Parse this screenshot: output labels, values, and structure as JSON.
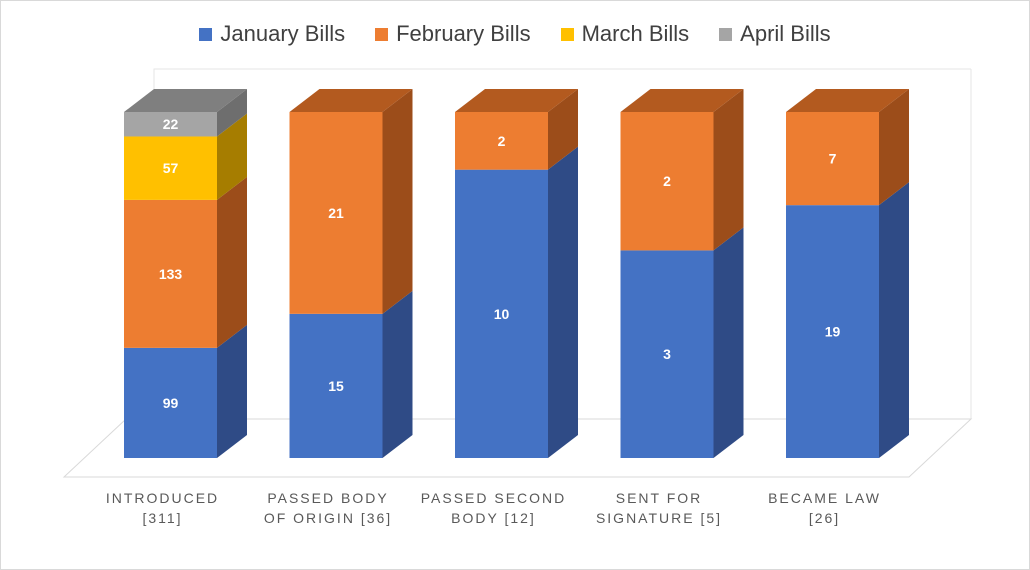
{
  "chart_data": {
    "type": "bar",
    "stacked": true,
    "three_d": true,
    "categories": [
      "INTRODUCED [311]",
      "PASSED BODY OF ORIGIN [36]",
      "PASSED SECOND BODY [12]",
      "SENT FOR SIGNATURE [5]",
      "BECAME LAW [26]"
    ],
    "category_lines": [
      [
        "INTRODUCED",
        "[311]"
      ],
      [
        "PASSED BODY",
        "OF ORIGIN [36]"
      ],
      [
        "PASSED SECOND",
        "BODY [12]"
      ],
      [
        "SENT FOR",
        "SIGNATURE [5]"
      ],
      [
        "BECAME LAW",
        "[26]"
      ]
    ],
    "series": [
      {
        "name": "January Bills",
        "values": [
          99,
          15,
          10,
          3,
          19
        ],
        "color": "#4472c4",
        "side": "#2f4b86",
        "top": "#3a62aa"
      },
      {
        "name": "February Bills",
        "values": [
          133,
          21,
          2,
          2,
          7
        ],
        "color": "#ed7d31",
        "side": "#9c4d1a",
        "top": "#b35a1f"
      },
      {
        "name": "March Bills",
        "values": [
          57,
          0,
          0,
          0,
          0
        ],
        "color": "#ffc000",
        "side": "#a67d00",
        "top": "#bf9000"
      },
      {
        "name": "April Bills",
        "values": [
          22,
          0,
          0,
          0,
          0
        ],
        "color": "#a5a5a5",
        "side": "#6e6e6e",
        "top": "#7f7f7f"
      }
    ],
    "percent_stacked": true,
    "legend_position": "top",
    "grid": false,
    "title": "",
    "xlabel": "",
    "ylabel": ""
  }
}
